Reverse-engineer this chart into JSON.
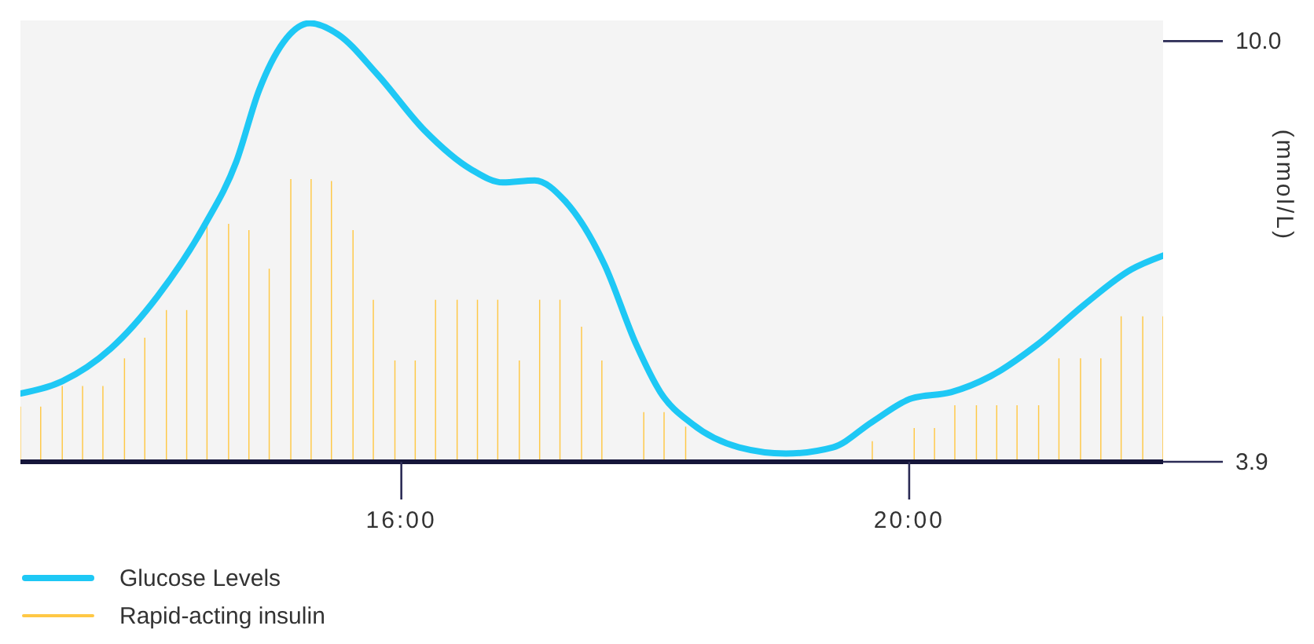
{
  "chart_data": {
    "type": "line",
    "ylabel": "(mmol/L)",
    "xlim": [
      13,
      22
    ],
    "xticks": [
      {
        "value": 16,
        "label": "16:00"
      },
      {
        "value": 20,
        "label": "20:00"
      }
    ],
    "ylim": [
      3.9,
      10.3
    ],
    "yticks": [
      3.9,
      {
        "value": 10,
        "label": "10.0"
      }
    ],
    "legend": "bottom left",
    "series": [
      {
        "name": "Glucose Levels",
        "color": "#1ec8f5",
        "x": [
          13.0,
          13.33,
          13.71,
          14.08,
          14.45,
          14.7,
          14.88,
          15.07,
          15.28,
          15.5,
          15.81,
          16.18,
          16.55,
          16.8,
          17.05,
          17.29,
          17.6,
          17.85,
          18.04,
          18.29,
          18.66,
          19.03,
          19.4,
          19.71,
          20.02,
          20.33,
          20.64,
          21.01,
          21.38,
          21.75,
          22.0
        ],
        "values": [
          4.89,
          5.07,
          5.54,
          6.3,
          7.33,
          8.25,
          9.29,
          9.98,
          10.26,
          10.1,
          9.52,
          8.71,
          8.14,
          7.95,
          7.98,
          7.68,
          6.76,
          5.6,
          4.91,
          4.45,
          4.11,
          4.02,
          4.11,
          4.48,
          4.82,
          4.91,
          5.14,
          5.6,
          6.18,
          6.69,
          6.89
        ]
      },
      {
        "name": "Rapid-acting insulin",
        "type": "bar",
        "color": "#ffc845",
        "x": [
          13.0,
          13.16,
          13.33,
          13.49,
          13.65,
          13.82,
          13.98,
          14.15,
          14.31,
          14.47,
          14.64,
          14.8,
          14.96,
          15.13,
          15.29,
          15.45,
          15.62,
          15.78,
          15.95,
          16.11,
          16.27,
          16.44,
          16.6,
          16.76,
          16.93,
          17.09,
          17.25,
          17.42,
          17.58,
          17.91,
          18.07,
          18.24,
          19.71,
          20.04,
          20.2,
          20.36,
          20.53,
          20.69,
          20.85,
          21.02,
          21.18,
          21.35,
          21.51,
          21.67,
          21.84,
          22.0
        ],
        "values": [
          4.7,
          4.7,
          5.0,
          5.0,
          5.0,
          5.4,
          5.7,
          6.1,
          6.1,
          7.35,
          7.35,
          7.26,
          6.7,
          8.0,
          8.0,
          7.97,
          7.26,
          6.25,
          5.37,
          5.37,
          6.25,
          6.25,
          6.25,
          6.25,
          5.37,
          6.25,
          6.25,
          5.86,
          5.37,
          4.62,
          4.62,
          4.41,
          4.2,
          4.39,
          4.39,
          4.72,
          4.72,
          4.72,
          4.72,
          4.72,
          5.4,
          5.4,
          5.4,
          6.01,
          6.01,
          6.01
        ]
      }
    ]
  }
}
